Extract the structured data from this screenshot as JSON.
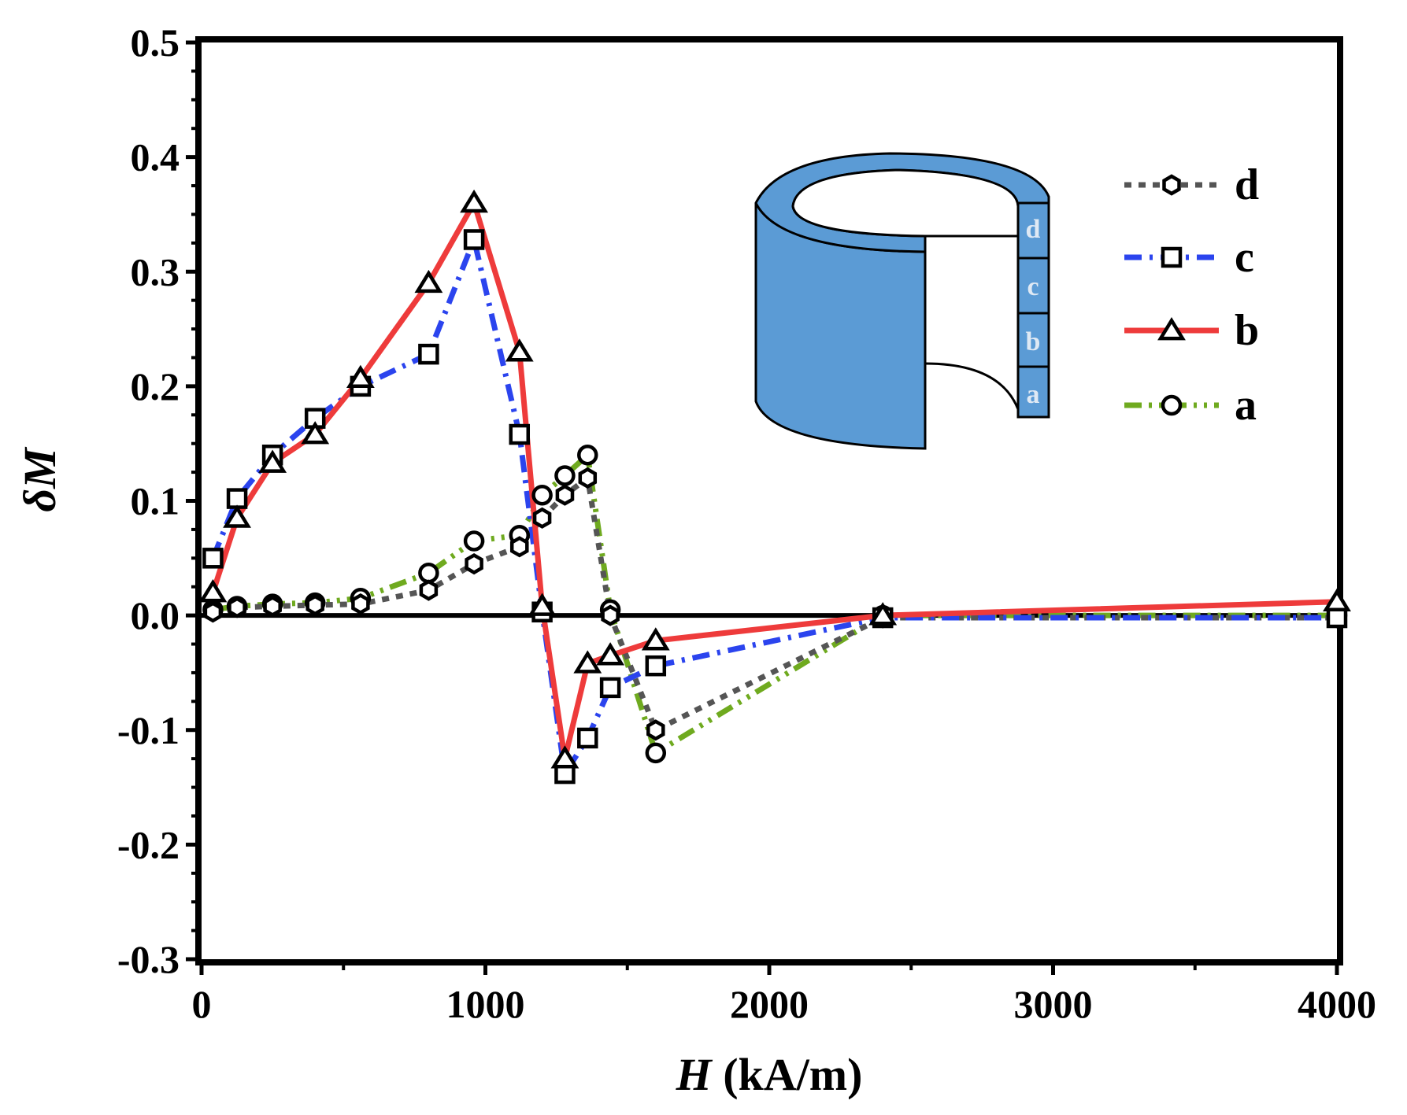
{
  "chart_data": {
    "type": "line",
    "title": "",
    "xlabel_italic": "H",
    "xlabel_rest": " (kA/m)",
    "ylabel_symbol": "δ",
    "ylabel_var": "M",
    "xlim": [
      0,
      4000
    ],
    "ylim": [
      -0.3,
      0.5
    ],
    "xticks": [
      0,
      1000,
      2000,
      3000,
      4000
    ],
    "xtick_labels": [
      "0",
      "1000",
      "2000",
      "3000",
      "4000"
    ],
    "yticks": [
      -0.3,
      -0.2,
      -0.1,
      0.0,
      0.1,
      0.2,
      0.3,
      0.4,
      0.5
    ],
    "ytick_labels": [
      "-0.3",
      "-0.2",
      "-0.1",
      "0.0",
      "0.1",
      "0.2",
      "0.3",
      "0.4",
      "0.5"
    ],
    "zero_line": true,
    "grid": false,
    "legend_position": "top-right",
    "series": [
      {
        "name": "d",
        "color": "#555555",
        "dash": "dot",
        "marker": "hexagon",
        "x": [
          40,
          125,
          250,
          400,
          560,
          800,
          960,
          1120,
          1200,
          1280,
          1360,
          1440,
          1600,
          2400,
          4000
        ],
        "y": [
          0.003,
          0.007,
          0.008,
          0.009,
          0.01,
          0.022,
          0.045,
          0.06,
          0.085,
          0.105,
          0.12,
          0.0,
          -0.1,
          -0.002,
          -0.002
        ]
      },
      {
        "name": "c",
        "color": "#2b44ee",
        "dash": "dashdot",
        "marker": "square",
        "x": [
          40,
          125,
          250,
          400,
          560,
          800,
          960,
          1120,
          1200,
          1280,
          1360,
          1440,
          1600,
          2400,
          4000
        ],
        "y": [
          0.05,
          0.102,
          0.14,
          0.172,
          0.2,
          0.228,
          0.328,
          0.158,
          0.003,
          -0.138,
          -0.107,
          -0.063,
          -0.044,
          -0.002,
          -0.002
        ]
      },
      {
        "name": "b",
        "color": "#ee3b3b",
        "dash": "solid",
        "marker": "triangle",
        "x": [
          40,
          125,
          250,
          400,
          560,
          800,
          960,
          1120,
          1200,
          1280,
          1360,
          1440,
          1600,
          2400,
          4000
        ],
        "y": [
          0.02,
          0.085,
          0.133,
          0.158,
          0.207,
          0.29,
          0.36,
          0.23,
          0.008,
          -0.125,
          -0.042,
          -0.035,
          -0.022,
          0.0,
          0.012
        ]
      },
      {
        "name": "a",
        "color": "#6faa1f",
        "dash": "dashdotdot",
        "marker": "circle",
        "x": [
          40,
          125,
          250,
          400,
          560,
          800,
          960,
          1120,
          1200,
          1280,
          1360,
          1440,
          1600,
          2400,
          4000
        ],
        "y": [
          0.005,
          0.008,
          0.01,
          0.011,
          0.015,
          0.037,
          0.065,
          0.07,
          0.105,
          0.122,
          0.14,
          0.005,
          -0.12,
          0.0,
          0.0
        ]
      }
    ],
    "inset": {
      "description_icon": "hollow-cylinder-icon",
      "fill_color": "#5b9bd5",
      "segment_labels": [
        "d",
        "c",
        "b",
        "a"
      ]
    }
  }
}
